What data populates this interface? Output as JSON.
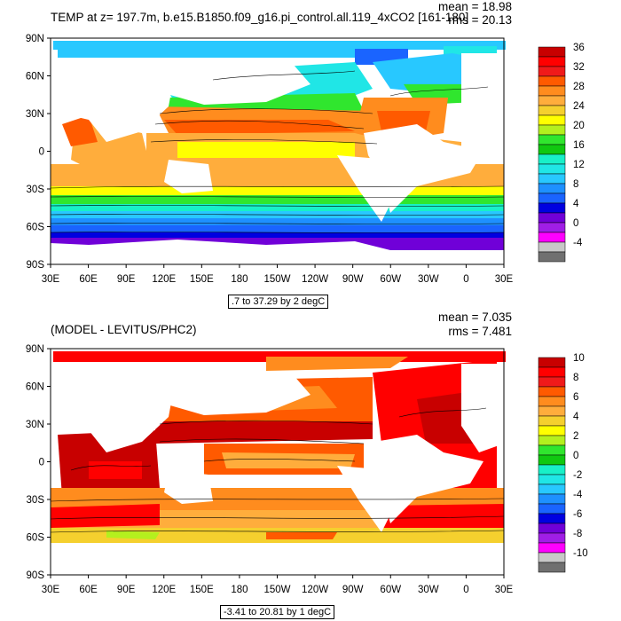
{
  "panels": [
    {
      "id": "top",
      "title": "TEMP at z= 197.7m, b.e15.B1850.f09_g16.pi_control.all.119_4xCO2 [161-180]",
      "mean_label": "mean = 18.98",
      "rms_label": "rms = 20.13",
      "contour_info": ".7 to 37.29 by 2 degC",
      "lat_labels": [
        "90N",
        "60N",
        "30N",
        "0",
        "30S",
        "60S",
        "90S"
      ],
      "lon_labels": [
        "30E",
        "60E",
        "90E",
        "120E",
        "150E",
        "180",
        "150W",
        "120W",
        "90W",
        "60W",
        "30W",
        "0",
        "30E"
      ],
      "colorbar": {
        "labels": [
          "36",
          "32",
          "28",
          "24",
          "20",
          "16",
          "12",
          "8",
          "4",
          "0",
          "-4"
        ],
        "colors": [
          "#c80000",
          "#ff0000",
          "#f01a1a",
          "#ff5a00",
          "#ff8c1e",
          "#ffad3c",
          "#f5d02e",
          "#ffff00",
          "#b4f01e",
          "#30e62e",
          "#10c810",
          "#18f0c8",
          "#20e6e6",
          "#28c8ff",
          "#1e90ff",
          "#1a64ff",
          "#0000e0",
          "#7000d8",
          "#a01ee6",
          "#ff00ff",
          "#c8c8c8",
          "#707070"
        ]
      }
    },
    {
      "id": "bottom",
      "title": "(MODEL - LEVITUS/PHC2)",
      "mean_label": "mean = 7.035",
      "rms_label": "rms = 7.481",
      "contour_info": "-3.41 to 20.81 by 1 degC",
      "lat_labels": [
        "90N",
        "60N",
        "30N",
        "0",
        "30S",
        "60S",
        "90S"
      ],
      "lon_labels": [
        "30E",
        "60E",
        "90E",
        "120E",
        "150E",
        "180",
        "150W",
        "120W",
        "90W",
        "60W",
        "30W",
        "0",
        "30E"
      ],
      "colorbar": {
        "labels": [
          "10",
          "8",
          "6",
          "4",
          "2",
          "0",
          "-2",
          "-4",
          "-6",
          "-8",
          "-10"
        ],
        "colors": [
          "#c80000",
          "#ff0000",
          "#f01a1a",
          "#ff5a00",
          "#ff8c1e",
          "#ffad3c",
          "#f5d02e",
          "#ffff00",
          "#b4f01e",
          "#30e62e",
          "#10c810",
          "#18f0c8",
          "#20e6e6",
          "#28c8ff",
          "#1e90ff",
          "#1a64ff",
          "#0000e0",
          "#7000d8",
          "#a01ee6",
          "#ff00ff",
          "#c8c8c8",
          "#707070"
        ]
      }
    }
  ]
}
